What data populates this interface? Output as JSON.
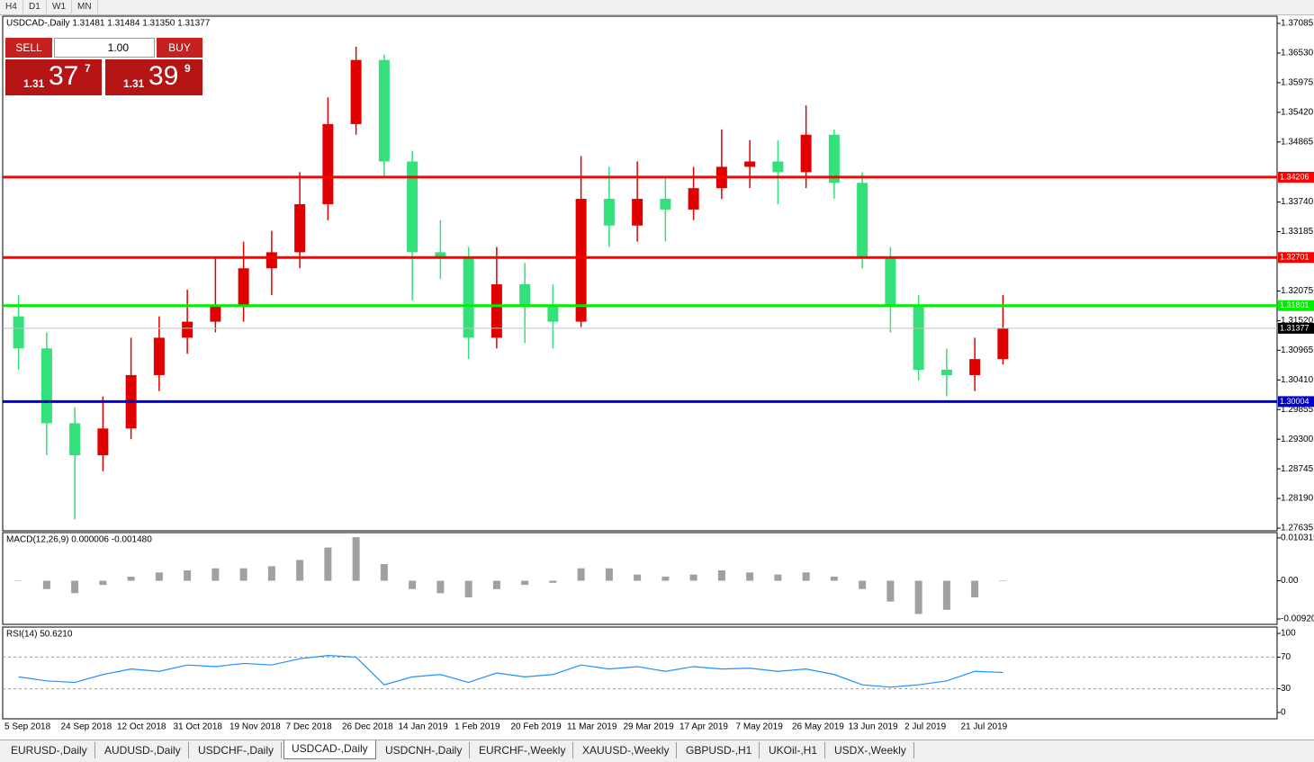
{
  "toolbar": {
    "timeframes": [
      "H4",
      "D1",
      "W1",
      "MN"
    ]
  },
  "trade_panel": {
    "sell": "SELL",
    "buy": "BUY",
    "lot": "1.00",
    "bid_prefix": "1.31",
    "bid_big": "37",
    "bid_small": "7",
    "ask_prefix": "1.31",
    "ask_big": "39",
    "ask_small": "9"
  },
  "chart_data": [
    {
      "type": "candlestick",
      "title": "USDCAD-,Daily  1.31481 1.31484 1.31350 1.31377",
      "categories": [
        "5 Sep 2018",
        null,
        "24 Sep 2018",
        null,
        "12 Oct 2018",
        null,
        "31 Oct 2018",
        null,
        "19 Nov 2018",
        null,
        "7 Dec 2018",
        null,
        "26 Dec 2018",
        null,
        "14 Jan 2019",
        null,
        "1 Feb 2019",
        null,
        "20 Feb 2019",
        null,
        "11 Mar 2019",
        null,
        "29 Mar 2019",
        null,
        "17 Apr 2019",
        null,
        "7 May 2019",
        null,
        "26 May 2019",
        null,
        "13 Jun 2019",
        null,
        "2 Jul 2019",
        null,
        "21 Jul 2019",
        null
      ],
      "open": [
        1.316,
        1.31,
        1.296,
        1.29,
        1.295,
        1.305,
        1.312,
        1.315,
        1.318,
        1.325,
        1.328,
        1.337,
        1.352,
        1.364,
        1.345,
        1.328,
        1.327,
        1.312,
        1.322,
        1.318,
        1.315,
        1.338,
        1.333,
        1.338,
        1.336,
        1.34,
        1.344,
        1.345,
        1.343,
        1.35,
        1.341,
        1.327,
        1.318,
        1.306,
        1.305,
        1.308
      ],
      "high": [
        1.32,
        1.313,
        1.299,
        1.301,
        1.312,
        1.316,
        1.321,
        1.327,
        1.33,
        1.332,
        1.343,
        1.357,
        1.3665,
        1.365,
        1.347,
        1.334,
        1.329,
        1.329,
        1.326,
        1.322,
        1.346,
        1.344,
        1.345,
        1.342,
        1.344,
        1.351,
        1.349,
        1.349,
        1.3555,
        1.351,
        1.343,
        1.329,
        1.32,
        1.31,
        1.312,
        1.32
      ],
      "low": [
        1.306,
        1.29,
        1.278,
        1.287,
        1.293,
        1.302,
        1.309,
        1.313,
        1.315,
        1.32,
        1.325,
        1.334,
        1.35,
        1.342,
        1.319,
        1.323,
        1.308,
        1.31,
        1.311,
        1.31,
        1.314,
        1.329,
        1.33,
        1.33,
        1.334,
        1.338,
        1.34,
        1.337,
        1.34,
        1.338,
        1.325,
        1.313,
        1.304,
        1.301,
        1.302,
        1.307
      ],
      "close": [
        1.31,
        1.296,
        1.29,
        1.295,
        1.305,
        1.312,
        1.315,
        1.318,
        1.325,
        1.328,
        1.337,
        1.352,
        1.364,
        1.345,
        1.328,
        1.327,
        1.312,
        1.322,
        1.318,
        1.315,
        1.338,
        1.333,
        1.338,
        1.336,
        1.34,
        1.344,
        1.345,
        1.343,
        1.35,
        1.341,
        1.327,
        1.318,
        1.306,
        1.305,
        1.308,
        1.3138
      ],
      "up_color": "#e00000",
      "down_color": "#33e07a",
      "ylim": [
        1.27585,
        1.3722
      ],
      "yticks": [
        {
          "value": 1.37085,
          "label": "1.37085"
        },
        {
          "value": 1.3653,
          "label": "1.36530"
        },
        {
          "value": 1.35975,
          "label": "1.35975"
        },
        {
          "value": 1.3542,
          "label": "1.35420"
        },
        {
          "value": 1.34865,
          "label": "1.34865"
        },
        {
          "value": 1.3374,
          "label": "1.33740"
        },
        {
          "value": 1.33185,
          "label": "1.33185"
        },
        {
          "value": 1.32075,
          "label": "1.32075"
        },
        {
          "value": 1.3152,
          "label": "1.31520"
        },
        {
          "value": 1.30965,
          "label": "1.30965"
        },
        {
          "value": 1.3041,
          "label": "1.30410"
        },
        {
          "value": 1.29855,
          "label": "1.29855"
        },
        {
          "value": 1.293,
          "label": "1.29300"
        },
        {
          "value": 1.28745,
          "label": "1.28745"
        },
        {
          "value": 1.2819,
          "label": "1.28190"
        },
        {
          "value": 1.27635,
          "label": "1.27635"
        }
      ],
      "levels": [
        {
          "value": 1.34206,
          "color": "#ff0000"
        },
        {
          "value": 1.32701,
          "color": "#ff0000"
        },
        {
          "value": 1.31801,
          "color": "#00ee00"
        },
        {
          "value": 1.30004,
          "color": "#0000cc"
        },
        {
          "value": 1.31377,
          "color": "#c0c0c0"
        }
      ]
    },
    {
      "type": "histogram",
      "title": "MACD(12,26,9) 0.000006 -0.001480",
      "values": [
        0.0,
        -0.002,
        -0.003,
        -0.001,
        0.001,
        0.002,
        0.0025,
        0.003,
        0.003,
        0.0035,
        0.005,
        0.008,
        0.0105,
        0.004,
        -0.002,
        -0.003,
        -0.004,
        -0.002,
        -0.001,
        -0.0005,
        0.003,
        0.003,
        0.0015,
        0.001,
        0.0015,
        0.0025,
        0.002,
        0.0015,
        0.002,
        0.001,
        -0.002,
        -0.005,
        -0.008,
        -0.007,
        -0.004,
        0.0
      ],
      "color": "#a0a0a0",
      "ylim": [
        -0.0105,
        0.0116
      ],
      "yticks": [
        0.010315,
        {
          "value": 0,
          "label": "0.00"
        },
        -0.009203
      ]
    },
    {
      "type": "line",
      "title": "RSI(14) 50.6210",
      "values": [
        45,
        40,
        38,
        48,
        55,
        52,
        60,
        58,
        62,
        60,
        68,
        72,
        70,
        35,
        45,
        48,
        38,
        50,
        45,
        48,
        60,
        55,
        58,
        52,
        58,
        55,
        56,
        52,
        55,
        48,
        35,
        32,
        35,
        40,
        52,
        50.621
      ],
      "color": "#1e90ff",
      "ylim": [
        -8,
        108
      ],
      "yticks": [
        100,
        70,
        30,
        0
      ],
      "levels": [
        70,
        30
      ]
    }
  ],
  "tabs": [
    "EURUSD-,Daily",
    "AUDUSD-,Daily",
    "USDCHF-,Daily",
    "USDCAD-,Daily",
    "USDCNH-,Daily",
    "EURCHF-,Weekly",
    "XAUUSD-,Weekly",
    "GBPUSD-,H1",
    "UKOil-,H1",
    "USDX-,Weekly"
  ],
  "active_tab": 3
}
